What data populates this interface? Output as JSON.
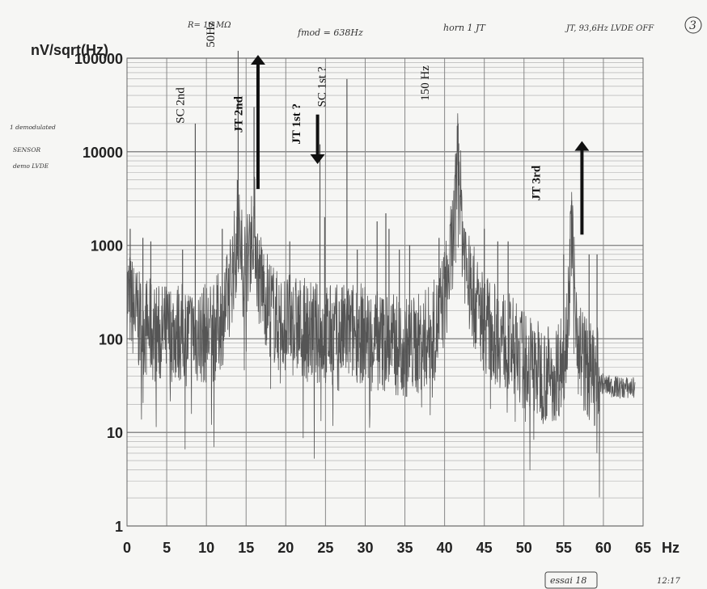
{
  "chart_data": {
    "type": "line",
    "ylabel": "nV/sqrt(Hz)",
    "xunit": "Hz",
    "xlim": [
      0,
      65
    ],
    "ylim": [
      1,
      100000
    ],
    "yscale": "log",
    "grid": true,
    "x_ticks": [
      "0",
      "5",
      "10",
      "15",
      "20",
      "25",
      "30",
      "35",
      "40",
      "45",
      "50",
      "55",
      "60",
      "65"
    ],
    "y_ticks": [
      "1",
      "10",
      "100",
      "1000",
      "10000",
      "100000"
    ],
    "handwritten_header": [
      "R= 10 MΩ",
      "fmod = 638Hz",
      "horn 1 JT",
      "JT, 93,6Hz LVDE OFF",
      "3"
    ],
    "handwritten_side": [
      "1 demodulated",
      "SENSOR",
      "demo LVDE"
    ],
    "handwritten_footer": [
      "essai 18",
      "12:17"
    ],
    "annotations": [
      {
        "text": "SC 2nd",
        "x": 7.2,
        "y": 20000
      },
      {
        "text": "50Hz",
        "x": 11.0,
        "y": 130000
      },
      {
        "text": "JT 2nd",
        "x": 14.5,
        "y": 16000
      },
      {
        "text": "JT 1st ?",
        "x": 21.8,
        "y": 12000
      },
      {
        "text": "SC 1st ?",
        "x": 25.0,
        "y": 30000
      },
      {
        "text": "150 Hz",
        "x": 38.0,
        "y": 35000
      },
      {
        "text": "JT 3rd",
        "x": 52.0,
        "y": 3000
      }
    ],
    "arrows": [
      {
        "direction": "up",
        "x": 16.5,
        "y_from": 4000,
        "y_to": 100000
      },
      {
        "direction": "down",
        "x": 24.0,
        "y_from": 25000,
        "y_to": 8000
      },
      {
        "direction": "up",
        "x": 57.3,
        "y_from": 1300,
        "y_to": 12000
      }
    ],
    "peaks": [
      {
        "x": 0.4,
        "y": 1500
      },
      {
        "x": 2.0,
        "y": 1200
      },
      {
        "x": 3.0,
        "y": 1100
      },
      {
        "x": 7.0,
        "y": 900
      },
      {
        "x": 8.6,
        "y": 20000
      },
      {
        "x": 12.0,
        "y": 1500
      },
      {
        "x": 13.9,
        "y": 5000
      },
      {
        "x": 14.0,
        "y": 120000
      },
      {
        "x": 16.0,
        "y": 30000
      },
      {
        "x": 17.0,
        "y": 900
      },
      {
        "x": 20.5,
        "y": 1100
      },
      {
        "x": 24.3,
        "y": 12000
      },
      {
        "x": 24.9,
        "y": 2000
      },
      {
        "x": 27.7,
        "y": 60000
      },
      {
        "x": 29.0,
        "y": 900
      },
      {
        "x": 31.5,
        "y": 1800
      },
      {
        "x": 32.6,
        "y": 2200
      },
      {
        "x": 33.0,
        "y": 1500
      },
      {
        "x": 34.3,
        "y": 900
      },
      {
        "x": 35.6,
        "y": 1000
      },
      {
        "x": 39.3,
        "y": 1200
      },
      {
        "x": 41.7,
        "y": 20000
      },
      {
        "x": 42.5,
        "y": 1500
      },
      {
        "x": 45.0,
        "y": 1500
      },
      {
        "x": 46.7,
        "y": 1100
      },
      {
        "x": 48.0,
        "y": 1100
      },
      {
        "x": 55.0,
        "y": 800
      },
      {
        "x": 56.0,
        "y": 3000
      },
      {
        "x": 58.2,
        "y": 800
      },
      {
        "x": 59.2,
        "y": 800
      }
    ],
    "noise_floor": [
      {
        "x": 0,
        "y": 300
      },
      {
        "x": 1.5,
        "y": 150
      },
      {
        "x": 4,
        "y": 110
      },
      {
        "x": 6,
        "y": 120
      },
      {
        "x": 9,
        "y": 110
      },
      {
        "x": 11,
        "y": 120
      },
      {
        "x": 12.5,
        "y": 220
      },
      {
        "x": 13.5,
        "y": 700
      },
      {
        "x": 14,
        "y": 1500
      },
      {
        "x": 14.6,
        "y": 600
      },
      {
        "x": 15.2,
        "y": 700
      },
      {
        "x": 16,
        "y": 2000
      },
      {
        "x": 16.5,
        "y": 500
      },
      {
        "x": 17.5,
        "y": 280
      },
      {
        "x": 19,
        "y": 150
      },
      {
        "x": 21,
        "y": 140
      },
      {
        "x": 23,
        "y": 120
      },
      {
        "x": 25,
        "y": 110
      },
      {
        "x": 27,
        "y": 110
      },
      {
        "x": 29,
        "y": 120
      },
      {
        "x": 31,
        "y": 100
      },
      {
        "x": 33,
        "y": 90
      },
      {
        "x": 35,
        "y": 80
      },
      {
        "x": 37,
        "y": 90
      },
      {
        "x": 39,
        "y": 130
      },
      {
        "x": 40.5,
        "y": 450
      },
      {
        "x": 41.3,
        "y": 2000
      },
      {
        "x": 41.7,
        "y": 12000
      },
      {
        "x": 42.2,
        "y": 1500
      },
      {
        "x": 43,
        "y": 400
      },
      {
        "x": 44.5,
        "y": 180
      },
      {
        "x": 46,
        "y": 120
      },
      {
        "x": 48,
        "y": 90
      },
      {
        "x": 50,
        "y": 60
      },
      {
        "x": 52,
        "y": 45
      },
      {
        "x": 53.5,
        "y": 40
      },
      {
        "x": 55,
        "y": 60
      },
      {
        "x": 55.7,
        "y": 300
      },
      {
        "x": 56,
        "y": 2000
      },
      {
        "x": 56.4,
        "y": 300
      },
      {
        "x": 57,
        "y": 80
      },
      {
        "x": 58,
        "y": 45
      },
      {
        "x": 59,
        "y": 40
      },
      {
        "x": 60,
        "y": 32
      },
      {
        "x": 62,
        "y": 30
      },
      {
        "x": 64,
        "y": 30
      }
    ],
    "colors": {
      "trace": "#555555",
      "grid": "#888888",
      "text": "#222222",
      "annotation": "#111111"
    }
  }
}
